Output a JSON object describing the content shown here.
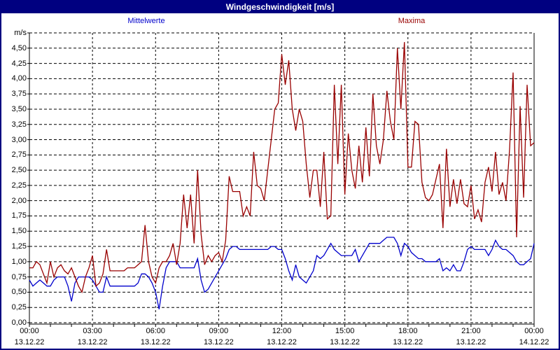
{
  "window": {
    "title": "Windgeschwindigkeit [m/s]"
  },
  "legend": {
    "mittelwerte": "Mittelwerte",
    "maxima": "Maxima"
  },
  "axes": {
    "y_unit": "m/s",
    "y_tick_labels": [
      "0,00",
      "0,25",
      "0,50",
      "0,75",
      "1,00",
      "1,25",
      "1,50",
      "1,75",
      "2,00",
      "2,25",
      "2,50",
      "2,75",
      "3,00",
      "3,25",
      "3,50",
      "3,75",
      "4,00",
      "4,25",
      "4,50"
    ],
    "y_tick_step": 0.25,
    "y_grid_max": 4.75,
    "x_ticks": [
      {
        "time": "00:00",
        "date": "13.12.22"
      },
      {
        "time": "03:00",
        "date": "13.12.22"
      },
      {
        "time": "06:00",
        "date": "13.12.22"
      },
      {
        "time": "09:00",
        "date": "13.12.22"
      },
      {
        "time": "12:00",
        "date": "13.12.22"
      },
      {
        "time": "15:00",
        "date": "13.12.22"
      },
      {
        "time": "18:00",
        "date": "13.12.22"
      },
      {
        "time": "21:00",
        "date": "13.12.22"
      },
      {
        "time": "00:00",
        "date": "14.12.22"
      }
    ],
    "x_minor_tick_hours": 1,
    "x_major_tick_hours": 3
  },
  "colors": {
    "frame": "#000080",
    "titlebar_bg": "#000080",
    "titlebar_text": "#ffffff",
    "grid": "#000000",
    "background": "#ffffff",
    "maxima": "#990000",
    "mittelwerte": "#0000cc"
  },
  "chart_data": {
    "type": "line",
    "title": "Windgeschwindigkeit [m/s]",
    "ylabel": "m/s",
    "ylim": [
      0,
      4.75
    ],
    "x_start_hour": 0,
    "x_end_hour": 24,
    "interval_minutes": 10,
    "grid": "dashed, every 0.25 m/s horizontal, every 3 h vertical",
    "legend_position": "top",
    "series": [
      {
        "name": "Mittelwerte",
        "color": "#0000cc",
        "values": [
          0.7,
          0.6,
          0.65,
          0.7,
          0.65,
          0.6,
          0.6,
          0.7,
          0.75,
          0.75,
          0.75,
          0.6,
          0.35,
          0.65,
          0.75,
          0.75,
          0.75,
          0.75,
          0.7,
          0.6,
          0.5,
          0.5,
          0.75,
          0.6,
          0.6,
          0.6,
          0.6,
          0.6,
          0.6,
          0.6,
          0.6,
          0.65,
          0.8,
          0.8,
          0.75,
          0.65,
          0.5,
          0.22,
          0.6,
          0.9,
          1.0,
          1.0,
          1.0,
          0.9,
          0.9,
          0.9,
          0.9,
          0.9,
          1.05,
          0.7,
          0.5,
          0.55,
          0.65,
          0.75,
          0.85,
          0.95,
          1.05,
          1.2,
          1.25,
          1.25,
          1.2,
          1.2,
          1.2,
          1.2,
          1.2,
          1.2,
          1.2,
          1.2,
          1.2,
          1.25,
          1.25,
          1.2,
          1.2,
          1.05,
          0.85,
          0.7,
          0.95,
          0.75,
          0.7,
          0.65,
          0.75,
          0.85,
          1.1,
          1.05,
          1.1,
          1.2,
          1.3,
          1.2,
          1.15,
          1.1,
          1.1,
          1.1,
          1.1,
          1.2,
          1.0,
          1.1,
          1.2,
          1.3,
          1.3,
          1.3,
          1.3,
          1.35,
          1.4,
          1.4,
          1.4,
          1.3,
          1.1,
          1.3,
          1.25,
          1.15,
          1.1,
          1.05,
          1.05,
          1.0,
          1.0,
          1.0,
          1.0,
          1.05,
          0.85,
          0.9,
          0.85,
          0.95,
          0.85,
          0.85,
          1.0,
          1.2,
          1.25,
          1.2,
          1.2,
          1.2,
          1.2,
          1.1,
          1.2,
          1.35,
          1.25,
          1.2,
          1.2,
          1.15,
          1.1,
          1.0,
          0.95,
          0.95,
          1.0,
          1.05,
          1.3
        ]
      },
      {
        "name": "Maxima",
        "color": "#990000",
        "values": [
          0.9,
          0.9,
          1.0,
          0.95,
          0.8,
          0.65,
          1.0,
          0.75,
          0.9,
          0.95,
          0.85,
          0.8,
          0.9,
          0.75,
          0.6,
          0.5,
          0.75,
          0.9,
          1.1,
          0.6,
          0.65,
          0.8,
          1.2,
          0.85,
          0.85,
          0.85,
          0.85,
          0.85,
          0.9,
          0.9,
          0.9,
          0.95,
          1.0,
          1.6,
          1.0,
          0.75,
          0.65,
          0.9,
          1.0,
          1.0,
          1.1,
          1.3,
          0.95,
          1.3,
          2.1,
          1.55,
          2.1,
          1.3,
          2.5,
          1.45,
          0.95,
          1.1,
          1.0,
          1.1,
          1.15,
          1.0,
          1.35,
          2.4,
          2.15,
          2.15,
          2.15,
          1.75,
          1.9,
          1.75,
          2.8,
          2.25,
          2.2,
          2.0,
          2.5,
          3.0,
          3.5,
          3.6,
          4.4,
          3.9,
          4.3,
          3.5,
          3.15,
          3.5,
          3.3,
          2.6,
          2.05,
          2.5,
          2.5,
          1.9,
          2.8,
          1.7,
          1.75,
          3.9,
          2.6,
          3.9,
          2.1,
          3.1,
          2.5,
          2.2,
          2.9,
          2.3,
          3.2,
          2.4,
          3.75,
          2.9,
          2.6,
          3.0,
          3.8,
          3.3,
          3.0,
          4.5,
          3.5,
          4.6,
          2.55,
          2.55,
          3.3,
          3.25,
          2.3,
          2.05,
          2.0,
          2.1,
          2.35,
          2.6,
          1.55,
          2.85,
          1.9,
          2.35,
          1.95,
          2.35,
          1.95,
          1.9,
          2.25,
          1.7,
          1.85,
          1.65,
          2.3,
          2.55,
          2.15,
          2.8,
          2.1,
          2.3,
          2.0,
          2.85,
          4.1,
          1.4,
          3.55,
          2.05,
          3.9,
          2.9,
          2.95
        ]
      }
    ]
  }
}
